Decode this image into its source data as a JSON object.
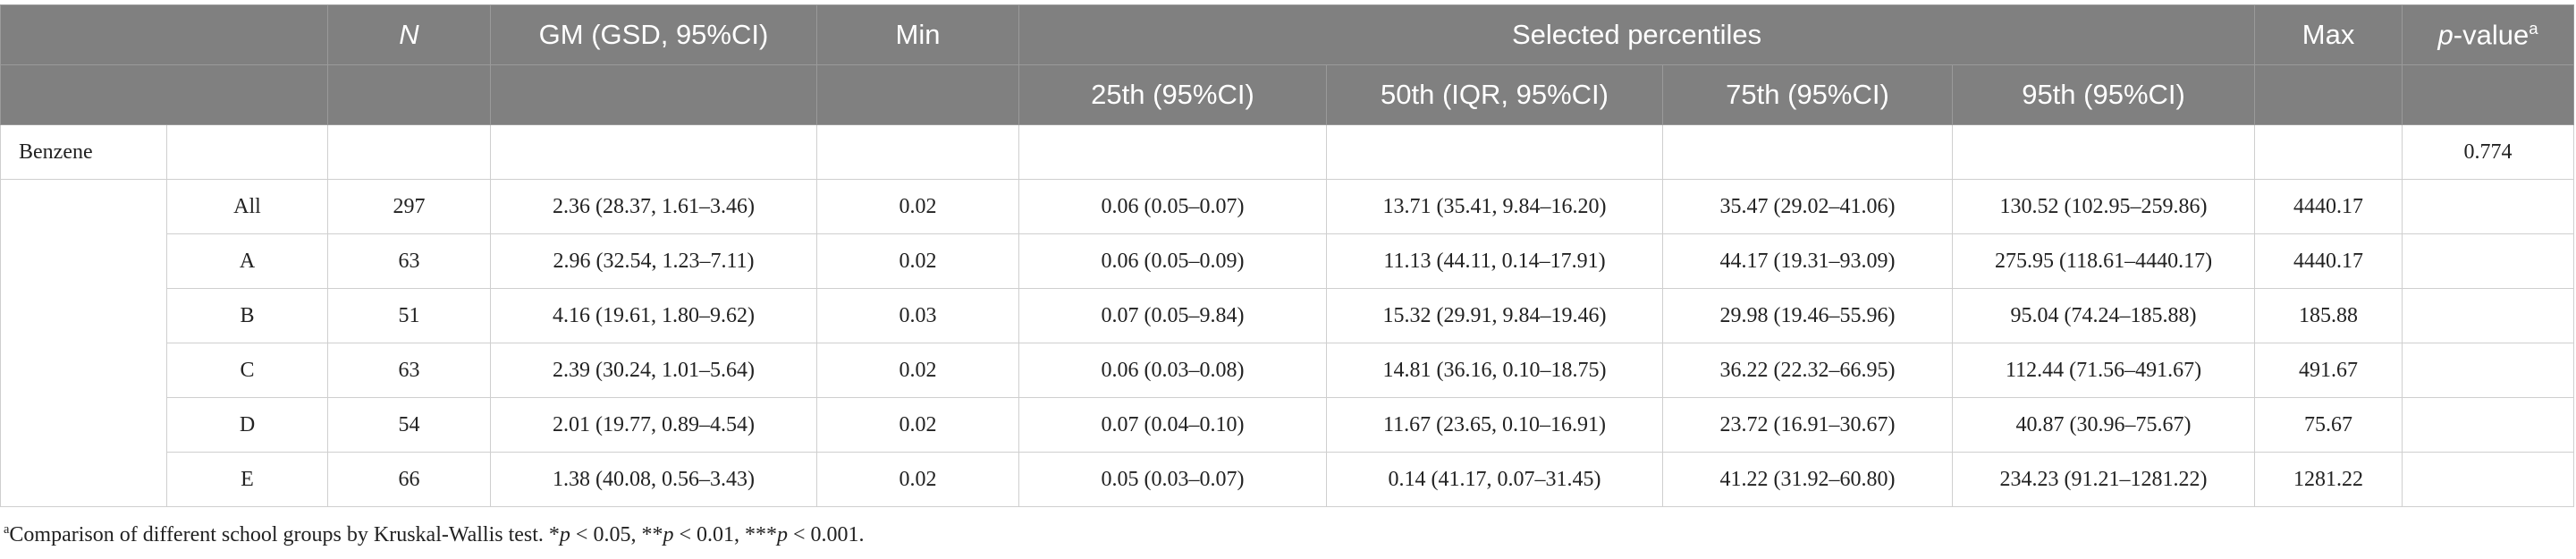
{
  "header": {
    "n": "N",
    "gm": "GM (GSD, 95%CI)",
    "min": "Min",
    "percentiles": "Selected percentiles",
    "max": "Max",
    "p_value": {
      "p": "p",
      "text": "-value",
      "note": "a"
    },
    "sub": [
      "25th (95%CI)",
      "50th (IQR, 95%CI)",
      "75th (95%CI)",
      "95th (95%CI)"
    ]
  },
  "substance": {
    "label": "Benzene",
    "p_value": "0.774"
  },
  "rows": [
    [
      "All",
      "297",
      "2.36 (28.37, 1.61–3.46)",
      "0.02",
      "0.06 (0.05–0.07)",
      "13.71 (35.41, 9.84–16.20)",
      "35.47 (29.02–41.06)",
      "130.52 (102.95–259.86)",
      "4440.17"
    ],
    [
      "A",
      "63",
      "2.96 (32.54, 1.23–7.11)",
      "0.02",
      "0.06 (0.05–0.09)",
      "11.13 (44.11, 0.14–17.91)",
      "44.17 (19.31–93.09)",
      "275.95 (118.61–4440.17)",
      "4440.17"
    ],
    [
      "B",
      "51",
      "4.16 (19.61, 1.80–9.62)",
      "0.03",
      "0.07 (0.05–9.84)",
      "15.32 (29.91, 9.84–19.46)",
      "29.98 (19.46–55.96)",
      "95.04 (74.24–185.88)",
      "185.88"
    ],
    [
      "C",
      "63",
      "2.39 (30.24, 1.01–5.64)",
      "0.02",
      "0.06 (0.03–0.08)",
      "14.81 (36.16, 0.10–18.75)",
      "36.22 (22.32–66.95)",
      "112.44 (71.56–491.67)",
      "491.67"
    ],
    [
      "D",
      "54",
      "2.01 (19.77, 0.89–4.54)",
      "0.02",
      "0.07 (0.04–0.10)",
      "11.67 (23.65, 0.10–16.91)",
      "23.72 (16.91–30.67)",
      "40.87 (30.96–75.67)",
      "75.67"
    ],
    [
      "E",
      "66",
      "1.38 (40.08, 0.56–3.43)",
      "0.02",
      "0.05 (0.03–0.07)",
      "0.14 (41.17, 0.07–31.45)",
      "41.22 (31.92–60.80)",
      "234.23 (91.21–1281.22)",
      "1281.22"
    ]
  ],
  "footnote": {
    "note": "a",
    "parts": [
      "Comparison of different school groups by Kruskal-Wallis test. *",
      "p",
      " < 0.05, **",
      "p",
      " < 0.01, ***",
      "p",
      " < 0.001."
    ]
  }
}
